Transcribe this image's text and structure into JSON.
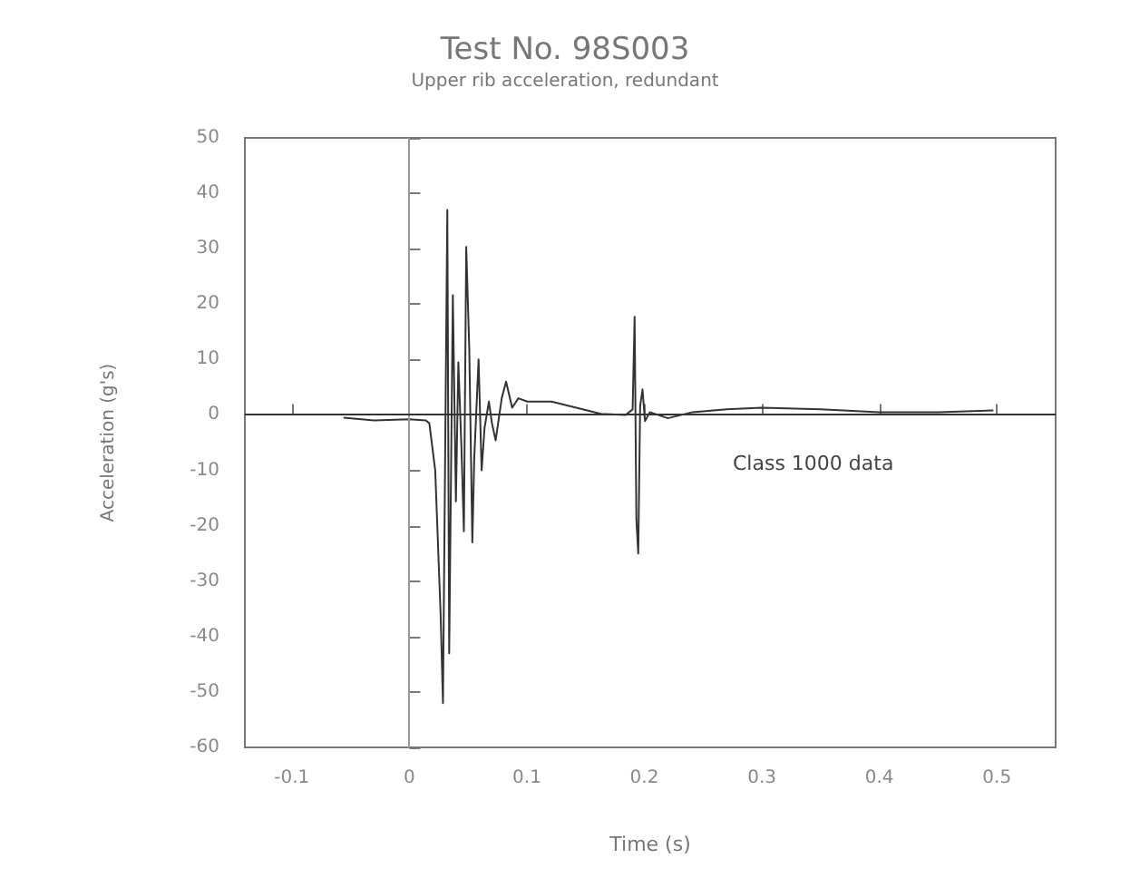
{
  "chart_data": {
    "type": "line",
    "title": "Test No. 98S003",
    "subtitle": "Upper rib acceleration, redundant",
    "xlabel": "Time (s)",
    "ylabel": "Acceleration (g's)",
    "annotations": [
      "Class 1000 data"
    ],
    "series": [
      {
        "color": "#333333",
        "x": [
          -0.056,
          -0.03,
          0,
          0.014,
          0.017,
          0.022,
          0.0266,
          0.0286,
          0.0323,
          0.0339,
          0.037,
          0.0396,
          0.0417,
          0.0443,
          0.0464,
          0.0484,
          0.051,
          0.0536,
          0.0552,
          0.0589,
          0.0615,
          0.064,
          0.0677,
          0.0703,
          0.0734,
          0.0786,
          0.0823,
          0.0875,
          0.0927,
          0.1005,
          0.121,
          0.142,
          0.163,
          0.184,
          0.19,
          0.1917,
          0.1932,
          0.1948,
          0.1964,
          0.1984,
          0.2005,
          0.2047,
          0.22,
          0.241,
          0.27,
          0.3,
          0.35,
          0.4,
          0.45,
          0.497
        ],
        "values": [
          -0.5,
          -1,
          -0.8,
          -1,
          -1.5,
          -10,
          -36,
          -52,
          37,
          -43,
          21.6,
          -15.6,
          9.5,
          -5.8,
          -21,
          30.3,
          11.8,
          -23,
          -7.9,
          10,
          -10,
          -2.3,
          2.4,
          -1.5,
          -4.6,
          3,
          6,
          1.3,
          3,
          2.4,
          2.4,
          1.3,
          0.2,
          0,
          1,
          17.7,
          -18.9,
          -25,
          1.6,
          4.6,
          -1.1,
          0.5,
          -0.6,
          0.5,
          1,
          1.3,
          1,
          0.5,
          0.5,
          0.8
        ]
      }
    ],
    "ref_lines": [
      {
        "axis": "x",
        "value": 0,
        "color": "#999999"
      },
      {
        "axis": "y",
        "value": 0,
        "color": "#333333"
      }
    ],
    "xlim": [
      -0.14,
      0.55
    ],
    "xticks": [
      -0.1,
      0,
      0.1,
      0.2,
      0.3,
      0.4,
      0.5
    ],
    "ylim": [
      -60,
      50
    ],
    "yticks": [
      -60,
      -50,
      -40,
      -30,
      -20,
      -10,
      0,
      10,
      20,
      30,
      40,
      50
    ],
    "grid": false,
    "marker": "none",
    "line_style": "solid"
  }
}
